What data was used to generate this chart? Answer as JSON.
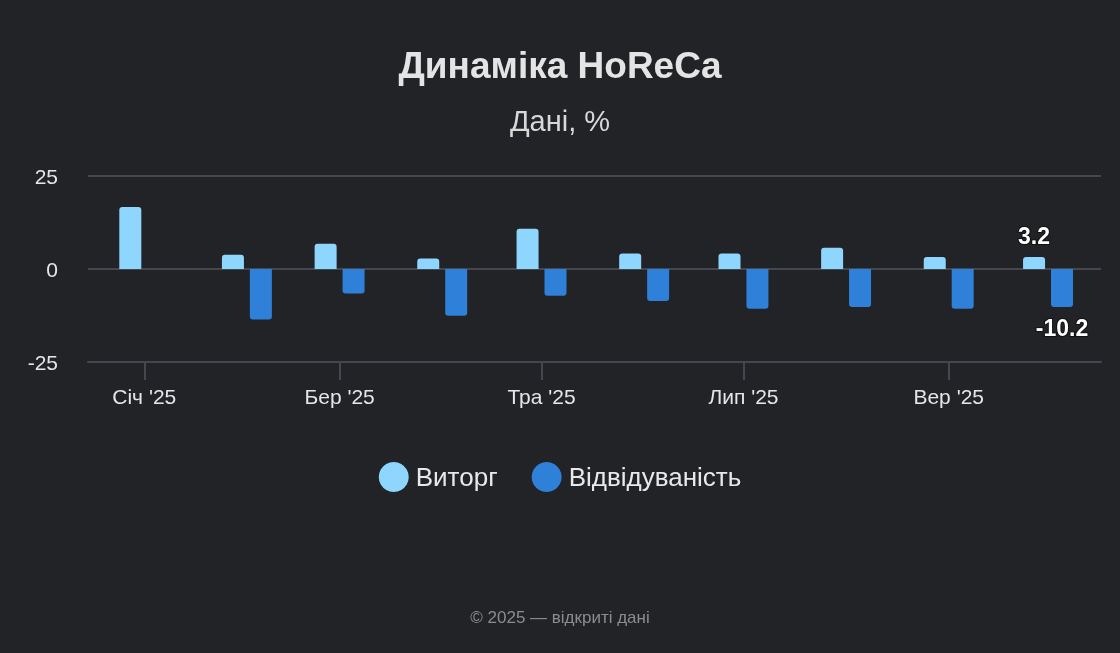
{
  "chart_data": {
    "type": "bar",
    "title": "Динаміка HoReCa",
    "subtitle": "Дані, %",
    "x": [
      "2025-01",
      "2025-02",
      "2025-03",
      "2025-04",
      "2025-05",
      "2025-06",
      "2025-07",
      "2025-08",
      "2025-09",
      "2025-10"
    ],
    "xlim": [
      "2024-12-15",
      "2025-10-17"
    ],
    "xticks": [
      {
        "value": "2025-01",
        "label": "Січ '25"
      },
      {
        "value": "2025-03",
        "label": "Бер '25"
      },
      {
        "value": "2025-05",
        "label": "Тра '25"
      },
      {
        "value": "2025-07",
        "label": "Лип '25"
      },
      {
        "value": "2025-09",
        "label": "Вер '25"
      }
    ],
    "ylim": [
      -25,
      25
    ],
    "yticks": [
      -25,
      0,
      25
    ],
    "series": [
      {
        "name": "Виторг",
        "color": "#8fd6ff",
        "values": [
          16.7,
          3.8,
          6.8,
          2.8,
          10.8,
          4.2,
          4.2,
          5.7,
          3.2,
          3.2
        ],
        "value_labels": [
          null,
          null,
          null,
          null,
          null,
          null,
          null,
          null,
          null,
          "3.2"
        ]
      },
      {
        "name": "Відвідуваність",
        "color": "#2e80d9",
        "values": [
          null,
          -13.6,
          -6.6,
          -12.6,
          -7.2,
          -8.6,
          -10.7,
          -10.2,
          -10.7,
          -10.2
        ],
        "value_labels": [
          null,
          null,
          null,
          null,
          null,
          null,
          null,
          null,
          null,
          "-10.2"
        ]
      }
    ],
    "grid": "y",
    "legend": "bottom",
    "annotations": [
      "© 2025 — відкриті дані"
    ]
  }
}
